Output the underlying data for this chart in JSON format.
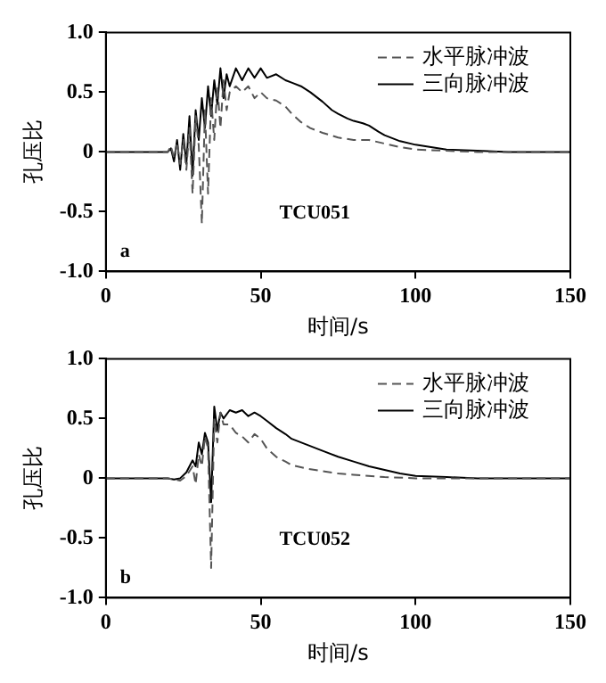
{
  "chart_data": [
    {
      "type": "line",
      "xlabel": "时间/s",
      "ylabel": "孔压比",
      "annotations": [
        "a",
        "TCU051"
      ],
      "xlim": [
        0,
        150
      ],
      "xticks": [
        0,
        50,
        100,
        150
      ],
      "ylim": [
        -1,
        1
      ],
      "yticks": [
        {
          "value": -1,
          "label": "-1.0"
        },
        {
          "value": -0.5,
          "label": "-0.5"
        },
        0,
        {
          "value": 0.5,
          "label": "0.5"
        },
        {
          "value": 1,
          "label": "1.0"
        }
      ],
      "legend": "top right",
      "grid": false,
      "marker": "none",
      "series": [
        {
          "name": "水平脉冲波",
          "color": "#555555",
          "line_style": "dashed",
          "x": [
            0,
            20,
            21,
            22,
            23,
            24,
            25,
            26,
            27,
            28,
            29,
            30,
            31,
            32,
            33,
            34,
            35,
            36,
            37,
            38,
            39,
            40,
            42,
            44,
            46,
            48,
            50,
            52,
            55,
            58,
            60,
            63,
            66,
            70,
            75,
            80,
            85,
            90,
            95,
            100,
            110,
            120,
            150
          ],
          "values": [
            0,
            0,
            0.05,
            -0.05,
            0.08,
            -0.1,
            0.1,
            -0.15,
            0.2,
            -0.35,
            0.3,
            0.05,
            -0.6,
            0.35,
            -0.35,
            0.45,
            0.1,
            0.55,
            0.2,
            0.6,
            0.35,
            0.5,
            0.55,
            0.5,
            0.55,
            0.45,
            0.5,
            0.45,
            0.43,
            0.38,
            0.32,
            0.25,
            0.2,
            0.16,
            0.12,
            0.1,
            0.1,
            0.07,
            0.04,
            0.02,
            0.01,
            0,
            0
          ]
        },
        {
          "name": "三向脉冲波",
          "color": "#000000",
          "line_style": "solid",
          "x": [
            0,
            20,
            21,
            22,
            23,
            24,
            25,
            26,
            27,
            28,
            29,
            30,
            31,
            32,
            33,
            34,
            35,
            36,
            37,
            38,
            39,
            40,
            42,
            44,
            46,
            48,
            50,
            52,
            55,
            58,
            60,
            63,
            66,
            70,
            73,
            75,
            78,
            80,
            83,
            85,
            88,
            90,
            95,
            100,
            105,
            110,
            120,
            130,
            150
          ],
          "values": [
            0,
            0,
            0.03,
            -0.08,
            0.1,
            -0.15,
            0.15,
            -0.1,
            0.3,
            -0.2,
            0.35,
            0.1,
            0.45,
            0.2,
            0.55,
            0.3,
            0.6,
            0.4,
            0.7,
            0.45,
            0.65,
            0.55,
            0.7,
            0.6,
            0.7,
            0.62,
            0.7,
            0.62,
            0.65,
            0.6,
            0.58,
            0.55,
            0.5,
            0.42,
            0.35,
            0.32,
            0.28,
            0.26,
            0.24,
            0.22,
            0.17,
            0.14,
            0.09,
            0.06,
            0.04,
            0.02,
            0.01,
            0,
            0
          ]
        }
      ]
    },
    {
      "type": "line",
      "xlabel": "时间/s",
      "ylabel": "孔压比",
      "annotations": [
        "b",
        "TCU052"
      ],
      "xlim": [
        0,
        150
      ],
      "xticks": [
        0,
        50,
        100,
        150
      ],
      "ylim": [
        -1,
        1
      ],
      "yticks": [
        {
          "value": -1,
          "label": "-1.0"
        },
        {
          "value": -0.5,
          "label": "-0.5"
        },
        0,
        {
          "value": 0.5,
          "label": "0.5"
        },
        {
          "value": 1,
          "label": "1.0"
        }
      ],
      "legend": "top right",
      "grid": false,
      "marker": "none",
      "series": [
        {
          "name": "水平脉冲波",
          "color": "#555555",
          "line_style": "dashed",
          "x": [
            0,
            20,
            22,
            24,
            26,
            28,
            29,
            30,
            31,
            32,
            33,
            34,
            35,
            36,
            37,
            38,
            40,
            42,
            44,
            46,
            48,
            50,
            52,
            55,
            58,
            60,
            65,
            70,
            75,
            80,
            90,
            100,
            150
          ],
          "values": [
            0,
            0,
            -0.01,
            -0.02,
            0.02,
            0.1,
            -0.05,
            0.2,
            0.1,
            0.35,
            0.25,
            -0.75,
            0.5,
            0.3,
            0.55,
            0.45,
            0.45,
            0.38,
            0.35,
            0.3,
            0.37,
            0.33,
            0.25,
            0.18,
            0.14,
            0.11,
            0.08,
            0.06,
            0.04,
            0.03,
            0.01,
            0,
            0
          ]
        },
        {
          "name": "三向脉冲波",
          "color": "#000000",
          "line_style": "solid",
          "x": [
            0,
            20,
            22,
            24,
            26,
            28,
            29,
            30,
            31,
            32,
            33,
            34,
            35,
            36,
            37,
            38,
            40,
            42,
            44,
            46,
            48,
            50,
            52,
            55,
            58,
            60,
            65,
            70,
            75,
            80,
            85,
            90,
            95,
            100,
            110,
            120,
            150
          ],
          "values": [
            0,
            0,
            -0.01,
            0,
            0.05,
            0.15,
            0.1,
            0.3,
            0.2,
            0.38,
            0.3,
            -0.2,
            0.6,
            0.4,
            0.55,
            0.5,
            0.57,
            0.55,
            0.57,
            0.52,
            0.55,
            0.52,
            0.48,
            0.42,
            0.37,
            0.33,
            0.28,
            0.23,
            0.18,
            0.14,
            0.1,
            0.07,
            0.04,
            0.02,
            0.01,
            0,
            0
          ]
        }
      ]
    }
  ]
}
